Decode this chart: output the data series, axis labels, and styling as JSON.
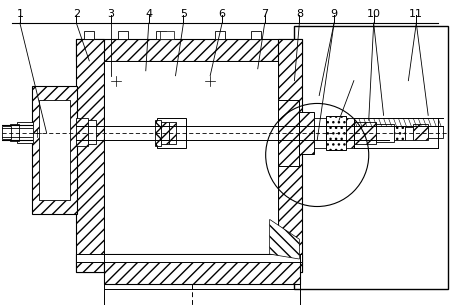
{
  "bg_color": "#ffffff",
  "line_color": "#000000",
  "labels": [
    "1",
    "2",
    "3",
    "4",
    "5",
    "6",
    "7",
    "8",
    "9",
    "10",
    "11"
  ],
  "fig_width": 4.6,
  "fig_height": 3.06,
  "dpi": 100
}
